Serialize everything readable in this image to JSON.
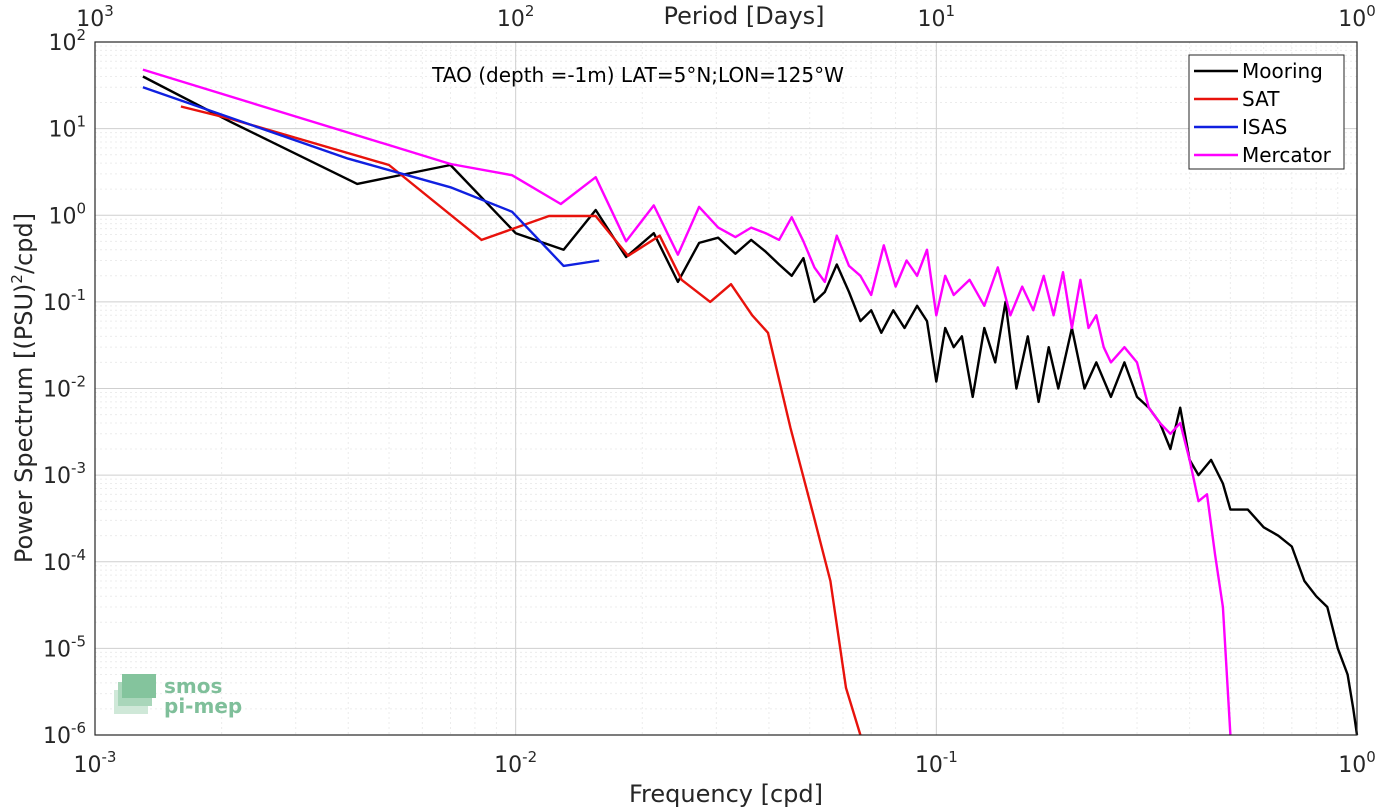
{
  "chart_data": {
    "type": "line",
    "title": "TAO (depth =-1m) LAT=5°N;LON=125°W",
    "xlabel": "Frequency [cpd]",
    "ylabel_main": "Power Spectrum [(PSU)",
    "ylabel_sup": "2",
    "ylabel_tail": "/cpd]",
    "top_xlabel": "Period [Days]",
    "x_scale": "log",
    "y_scale": "log",
    "xlim": [
      0.001,
      1
    ],
    "ylim": [
      1e-06,
      100
    ],
    "grid": true,
    "legend_position": "top-right",
    "x_ticks": [
      {
        "value": 0.001,
        "base": "10",
        "exp": "-3"
      },
      {
        "value": 0.01,
        "base": "10",
        "exp": "-2"
      },
      {
        "value": 0.1,
        "base": "10",
        "exp": "-1"
      },
      {
        "value": 1,
        "base": "10",
        "exp": "0"
      }
    ],
    "top_ticks": [
      {
        "value": 0.001,
        "base": "10",
        "exp": "3"
      },
      {
        "value": 0.01,
        "base": "10",
        "exp": "2"
      },
      {
        "value": 0.1,
        "base": "10",
        "exp": "1"
      },
      {
        "value": 1,
        "base": "10",
        "exp": "0"
      }
    ],
    "y_ticks": [
      {
        "value": 100,
        "base": "10",
        "exp": "2"
      },
      {
        "value": 10,
        "base": "10",
        "exp": "1"
      },
      {
        "value": 1,
        "base": "10",
        "exp": "0"
      },
      {
        "value": 0.1,
        "base": "10",
        "exp": "-1"
      },
      {
        "value": 0.01,
        "base": "10",
        "exp": "-2"
      },
      {
        "value": 0.001,
        "base": "10",
        "exp": "-3"
      },
      {
        "value": 0.0001,
        "base": "10",
        "exp": "-4"
      },
      {
        "value": 1e-05,
        "base": "10",
        "exp": "-5"
      },
      {
        "value": 1e-06,
        "base": "10",
        "exp": "-6"
      }
    ],
    "series": [
      {
        "name": "Mooring",
        "color": "#000000",
        "points": [
          [
            0.0013,
            40
          ],
          [
            0.0021,
            12
          ],
          [
            0.0042,
            2.3
          ],
          [
            0.007,
            3.8
          ],
          [
            0.01,
            0.62
          ],
          [
            0.013,
            0.4
          ],
          [
            0.0155,
            1.15
          ],
          [
            0.0183,
            0.33
          ],
          [
            0.0213,
            0.62
          ],
          [
            0.0243,
            0.17
          ],
          [
            0.0273,
            0.48
          ],
          [
            0.0303,
            0.55
          ],
          [
            0.0333,
            0.36
          ],
          [
            0.0363,
            0.52
          ],
          [
            0.0393,
            0.38
          ],
          [
            0.0423,
            0.27
          ],
          [
            0.0453,
            0.2
          ],
          [
            0.0483,
            0.32
          ],
          [
            0.0513,
            0.1
          ],
          [
            0.0543,
            0.13
          ],
          [
            0.058,
            0.27
          ],
          [
            0.062,
            0.13
          ],
          [
            0.066,
            0.06
          ],
          [
            0.07,
            0.08
          ],
          [
            0.074,
            0.044
          ],
          [
            0.079,
            0.08
          ],
          [
            0.084,
            0.05
          ],
          [
            0.09,
            0.09
          ],
          [
            0.095,
            0.06
          ],
          [
            0.1,
            0.012
          ],
          [
            0.105,
            0.05
          ],
          [
            0.11,
            0.03
          ],
          [
            0.115,
            0.04
          ],
          [
            0.122,
            0.008
          ],
          [
            0.13,
            0.05
          ],
          [
            0.138,
            0.02
          ],
          [
            0.146,
            0.1
          ],
          [
            0.155,
            0.01
          ],
          [
            0.165,
            0.04
          ],
          [
            0.175,
            0.007
          ],
          [
            0.185,
            0.03
          ],
          [
            0.195,
            0.01
          ],
          [
            0.21,
            0.05
          ],
          [
            0.225,
            0.01
          ],
          [
            0.24,
            0.02
          ],
          [
            0.26,
            0.008
          ],
          [
            0.28,
            0.02
          ],
          [
            0.3,
            0.008
          ],
          [
            0.32,
            0.006
          ],
          [
            0.34,
            0.004
          ],
          [
            0.36,
            0.002
          ],
          [
            0.38,
            0.006
          ],
          [
            0.4,
            0.0015
          ],
          [
            0.42,
            0.001
          ],
          [
            0.45,
            0.0015
          ],
          [
            0.48,
            0.0008
          ],
          [
            0.5,
            0.0004
          ],
          [
            0.55,
            0.0004
          ],
          [
            0.6,
            0.00025
          ],
          [
            0.65,
            0.0002
          ],
          [
            0.7,
            0.00015
          ],
          [
            0.75,
            6e-05
          ],
          [
            0.8,
            4e-05
          ],
          [
            0.85,
            3e-05
          ],
          [
            0.9,
            1e-05
          ],
          [
            0.95,
            5e-06
          ],
          [
            0.98,
            2e-06
          ],
          [
            1.0,
            1e-06
          ]
        ]
      },
      {
        "name": "SAT",
        "color": "#e8120c",
        "points": [
          [
            0.0016,
            18
          ],
          [
            0.0021,
            13
          ],
          [
            0.005,
            3.8
          ],
          [
            0.0083,
            0.52
          ],
          [
            0.012,
            0.98
          ],
          [
            0.0155,
            0.98
          ],
          [
            0.0185,
            0.34
          ],
          [
            0.022,
            0.58
          ],
          [
            0.0248,
            0.18
          ],
          [
            0.029,
            0.1
          ],
          [
            0.0325,
            0.16
          ],
          [
            0.0365,
            0.07
          ],
          [
            0.0398,
            0.044
          ],
          [
            0.045,
            0.0035
          ],
          [
            0.051,
            0.00035
          ],
          [
            0.056,
            6e-05
          ],
          [
            0.061,
            3.5e-06
          ],
          [
            0.066,
            1e-06
          ]
        ]
      },
      {
        "name": "ISAS",
        "color": "#1020e0",
        "points": [
          [
            0.0013,
            30
          ],
          [
            0.004,
            4.5
          ],
          [
            0.007,
            2.1
          ],
          [
            0.0098,
            1.1
          ],
          [
            0.013,
            0.26
          ],
          [
            0.0158,
            0.3
          ]
        ]
      },
      {
        "name": "Mercator",
        "color": "#ff00ff",
        "points": [
          [
            0.0013,
            48
          ],
          [
            0.007,
            3.9
          ],
          [
            0.0098,
            2.9
          ],
          [
            0.0128,
            1.35
          ],
          [
            0.0155,
            2.75
          ],
          [
            0.0183,
            0.5
          ],
          [
            0.0213,
            1.3
          ],
          [
            0.0243,
            0.35
          ],
          [
            0.0273,
            1.25
          ],
          [
            0.0303,
            0.72
          ],
          [
            0.0333,
            0.56
          ],
          [
            0.0363,
            0.72
          ],
          [
            0.0393,
            0.62
          ],
          [
            0.0423,
            0.52
          ],
          [
            0.0453,
            0.95
          ],
          [
            0.0483,
            0.5
          ],
          [
            0.0513,
            0.25
          ],
          [
            0.0543,
            0.17
          ],
          [
            0.058,
            0.58
          ],
          [
            0.062,
            0.26
          ],
          [
            0.066,
            0.2
          ],
          [
            0.07,
            0.12
          ],
          [
            0.075,
            0.45
          ],
          [
            0.08,
            0.15
          ],
          [
            0.085,
            0.3
          ],
          [
            0.09,
            0.2
          ],
          [
            0.095,
            0.4
          ],
          [
            0.1,
            0.07
          ],
          [
            0.105,
            0.2
          ],
          [
            0.11,
            0.12
          ],
          [
            0.12,
            0.18
          ],
          [
            0.13,
            0.09
          ],
          [
            0.14,
            0.25
          ],
          [
            0.15,
            0.07
          ],
          [
            0.16,
            0.15
          ],
          [
            0.17,
            0.08
          ],
          [
            0.18,
            0.2
          ],
          [
            0.19,
            0.07
          ],
          [
            0.2,
            0.22
          ],
          [
            0.21,
            0.05
          ],
          [
            0.22,
            0.18
          ],
          [
            0.23,
            0.05
          ],
          [
            0.24,
            0.07
          ],
          [
            0.25,
            0.03
          ],
          [
            0.26,
            0.02
          ],
          [
            0.28,
            0.03
          ],
          [
            0.3,
            0.02
          ],
          [
            0.32,
            0.006
          ],
          [
            0.34,
            0.004
          ],
          [
            0.36,
            0.003
          ],
          [
            0.38,
            0.004
          ],
          [
            0.4,
            0.0015
          ],
          [
            0.42,
            0.0005
          ],
          [
            0.44,
            0.0006
          ],
          [
            0.46,
            0.00012
          ],
          [
            0.48,
            3e-05
          ],
          [
            0.5,
            1e-06
          ]
        ]
      }
    ]
  },
  "logo": {
    "line1": "smos",
    "line2": "pi-mep"
  }
}
